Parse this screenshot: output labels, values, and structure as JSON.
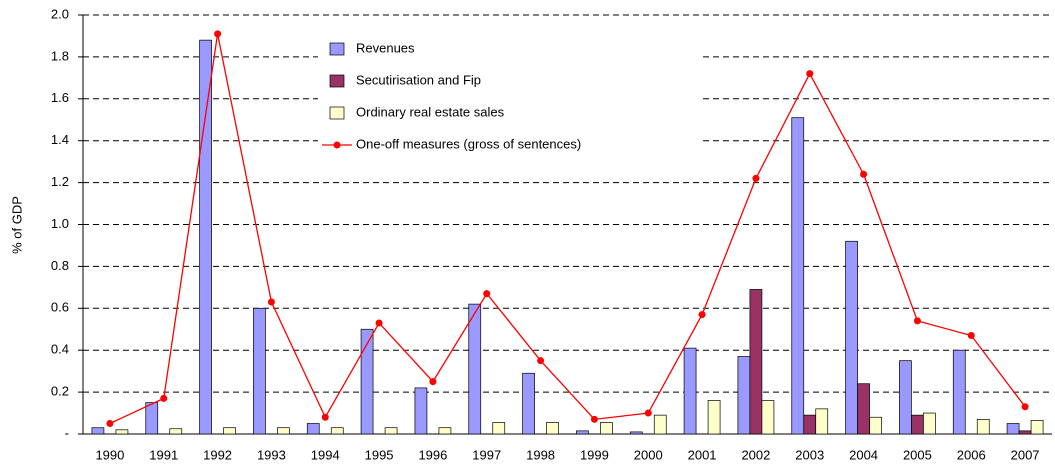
{
  "chart_data": {
    "type": "bar-line",
    "y_label": "% of GDP",
    "categories": [
      "1990",
      "1991",
      "1992",
      "1993",
      "1994",
      "1995",
      "1996",
      "1997",
      "1998",
      "1999",
      "2000",
      "2001",
      "2002",
      "2003",
      "2004",
      "2005",
      "2006",
      "2007"
    ],
    "series": [
      {
        "name": "Revenues",
        "type": "bar",
        "color": "#9999ff",
        "values": [
          0.03,
          0.15,
          1.88,
          0.6,
          0.05,
          0.5,
          0.22,
          0.62,
          0.29,
          0.015,
          0.01,
          0.41,
          0.37,
          1.51,
          0.92,
          0.35,
          0.4,
          0.05
        ]
      },
      {
        "name": "Secutirisation and Fip",
        "type": "bar",
        "color": "#993366",
        "values": [
          0,
          0,
          0,
          0,
          0,
          0,
          0,
          0,
          0,
          0,
          0,
          0,
          0.69,
          0.09,
          0.24,
          0.09,
          0,
          0.015
        ]
      },
      {
        "name": "Ordinary real estate sales",
        "type": "bar",
        "color": "#ffffcc",
        "values": [
          0.02,
          0.025,
          0.03,
          0.03,
          0.03,
          0.03,
          0.03,
          0.055,
          0.055,
          0.055,
          0.09,
          0.16,
          0.16,
          0.12,
          0.08,
          0.1,
          0.07,
          0.065
        ]
      },
      {
        "name": "One-off measures (gross of sentences)",
        "type": "line",
        "color": "#ff0000",
        "values": [
          0.05,
          0.17,
          1.91,
          0.63,
          0.08,
          0.53,
          0.25,
          0.67,
          0.35,
          0.07,
          0.1,
          0.57,
          1.22,
          1.72,
          1.24,
          0.54,
          0.47,
          0.13
        ]
      }
    ],
    "ylim": [
      0,
      2.0
    ],
    "yticks": [
      {
        "value": 0,
        "label": "-"
      },
      0.2,
      0.4,
      0.6,
      0.8,
      {
        "value": 1.0,
        "label": "1.0"
      },
      1.2,
      1.4,
      1.6,
      1.8,
      {
        "value": 2.0,
        "label": "2.0"
      }
    ],
    "grid": true,
    "legend": "top"
  }
}
